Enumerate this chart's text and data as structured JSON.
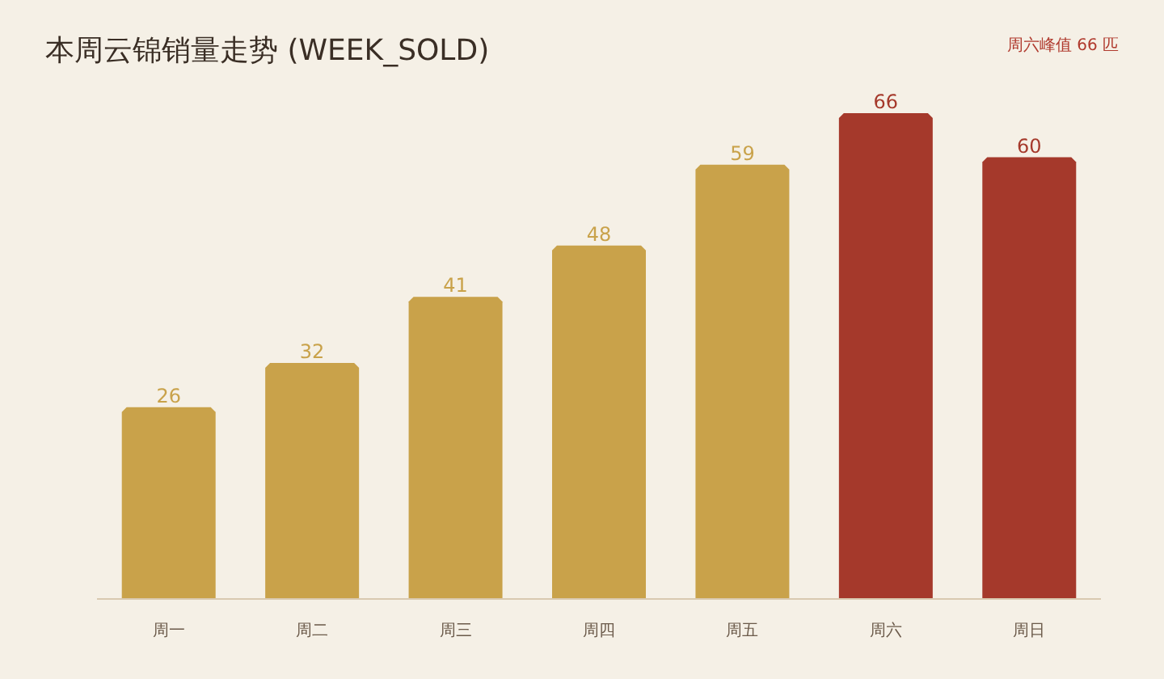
{
  "chart_data": {
    "type": "bar",
    "title": "本周云锦销量走势 (WEEK_SOLD)",
    "annotations": [
      "周六峰值 66 匹"
    ],
    "categories": [
      "周一",
      "周二",
      "周三",
      "周四",
      "周五",
      "周六",
      "周日"
    ],
    "values": [
      26,
      32,
      41,
      48,
      59,
      66,
      60
    ],
    "colors": [
      "#c9a24a",
      "#c9a24a",
      "#c9a24a",
      "#c9a24a",
      "#c9a24a",
      "#a5392b",
      "#a5392b"
    ],
    "data_labels": true
  }
}
